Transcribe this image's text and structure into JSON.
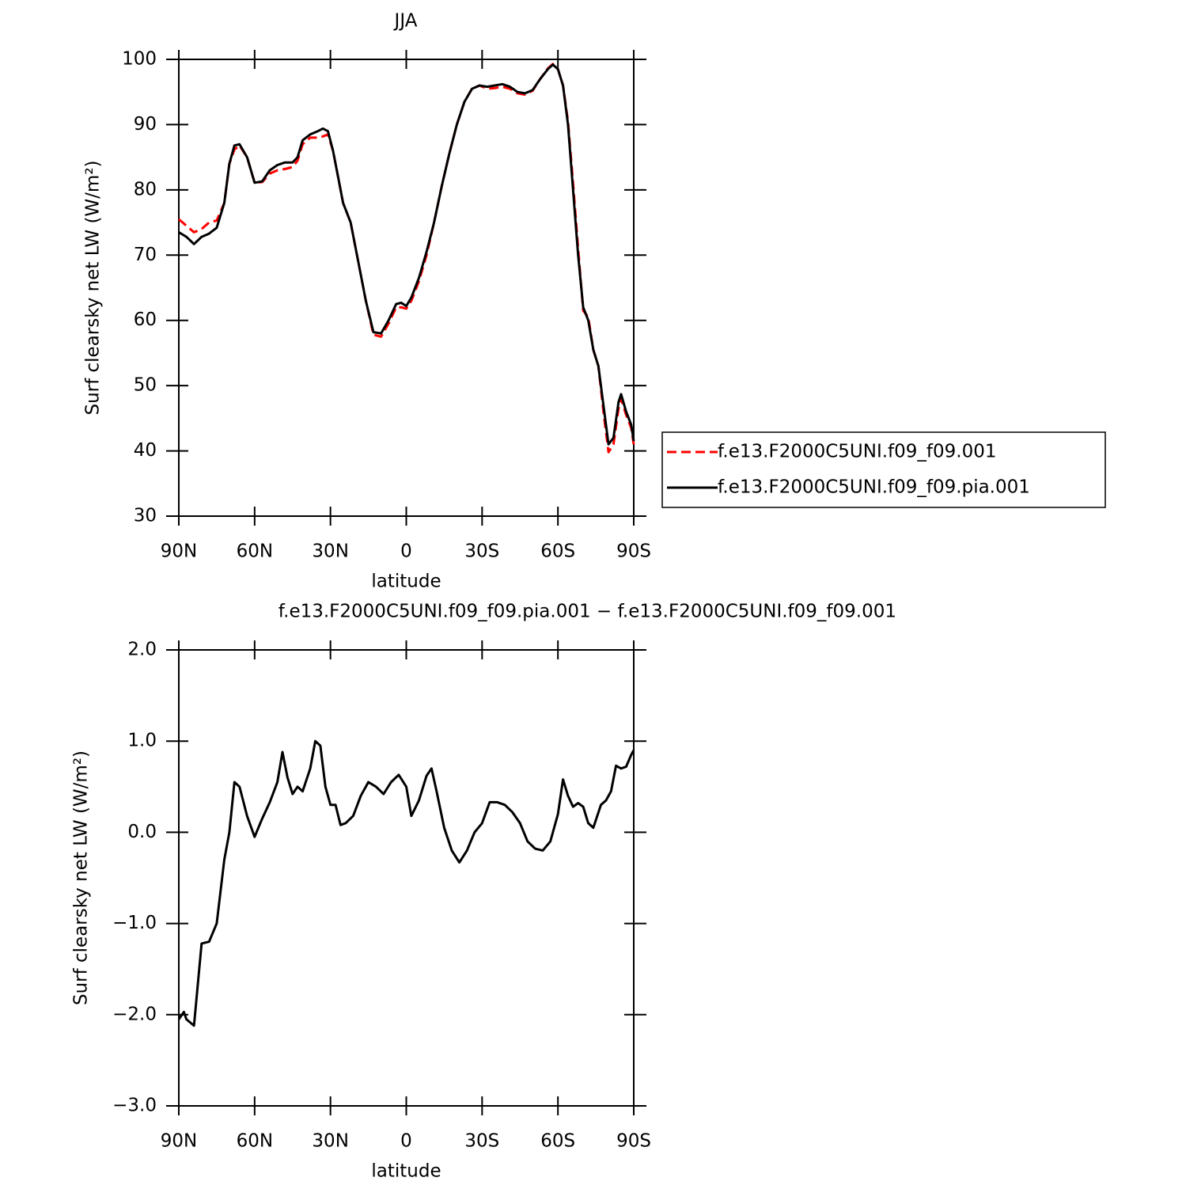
{
  "chart_data": [
    {
      "type": "line",
      "title": "JJA",
      "xlabel": "latitude",
      "ylabel": "Surf clearsky net LW (W/m²)",
      "x": [
        90,
        87,
        84,
        81,
        78,
        75,
        72,
        70,
        68,
        66,
        63,
        60,
        57,
        54,
        51,
        48,
        45,
        43,
        41,
        38,
        35,
        33,
        31,
        29,
        27,
        25,
        22,
        19,
        16,
        13,
        10,
        7,
        4,
        2,
        0,
        -2,
        -5,
        -8,
        -11,
        -14,
        -17,
        -20,
        -23,
        -26,
        -29,
        -32,
        -35,
        -38,
        -41,
        -44,
        -47,
        -50,
        -53,
        -56,
        -58,
        -60,
        -62,
        -64,
        -66,
        -68,
        -70,
        -72,
        -74,
        -76,
        -78,
        -80,
        -82,
        -84,
        -85,
        -87,
        -89,
        -90
      ],
      "series": [
        {
          "name": "f.e13.F2000C5UNI.f09_f09.001",
          "color": "#ff0000",
          "dashed": true,
          "values": [
            75.5,
            74.5,
            73.5,
            74,
            75,
            75.3,
            78,
            84,
            86.2,
            86.8,
            85,
            81.1,
            81.2,
            82.5,
            83,
            83.2,
            83.5,
            84.5,
            87,
            88,
            88,
            88.2,
            88.5,
            86,
            82,
            78,
            75,
            69,
            63,
            57.8,
            57.5,
            59.5,
            62,
            62,
            61.8,
            63,
            66,
            70,
            75,
            80.5,
            85.5,
            90,
            93.5,
            95.5,
            96,
            95.5,
            95.6,
            95.8,
            95.5,
            94.8,
            94.6,
            95.2,
            97,
            98.6,
            99.3,
            98.5,
            96,
            90.5,
            81,
            71,
            61.5,
            60.5,
            55.5,
            53,
            46,
            39.8,
            41,
            46.5,
            48,
            45.5,
            43.5,
            41
          ]
        },
        {
          "name": "f.e13.F2000C5UNI.f09_f09.pia.001",
          "color": "#000000",
          "dashed": false,
          "values": [
            73.5,
            72.8,
            71.7,
            72.8,
            73.3,
            74.2,
            78,
            84,
            86.8,
            87,
            85,
            81.1,
            81.3,
            83,
            83.8,
            84.2,
            84.2,
            85,
            87.6,
            88.5,
            89,
            89.4,
            89,
            86,
            82,
            78,
            75,
            69,
            63,
            58.2,
            58,
            60,
            62.5,
            62.7,
            62.2,
            63.5,
            66.5,
            70.5,
            75,
            80.5,
            85.5,
            90,
            93.5,
            95.5,
            96,
            95.8,
            96,
            96.2,
            95.8,
            95,
            94.8,
            95.3,
            97,
            98.5,
            99.2,
            98.5,
            96,
            90,
            80,
            70,
            62,
            60,
            55.5,
            53,
            47,
            41,
            42,
            47.5,
            48.7,
            46,
            44,
            41.5
          ]
        }
      ],
      "xlim": [
        90,
        -90
      ],
      "xticks": [
        {
          "value": 90,
          "label": "90N"
        },
        {
          "value": 60,
          "label": "60N"
        },
        {
          "value": 30,
          "label": "30N"
        },
        0,
        {
          "value": -30,
          "label": "30S"
        },
        {
          "value": -60,
          "label": "60S"
        },
        {
          "value": -90,
          "label": "90S"
        }
      ],
      "ylim": [
        30,
        100
      ],
      "yticks": [
        30,
        40,
        50,
        60,
        70,
        80,
        90,
        100
      ],
      "legend": "outside-right"
    },
    {
      "type": "line",
      "title": "f.e13.F2000C5UNI.f09_f09.pia.001 − f.e13.F2000C5UNI.f09_f09.001",
      "xlabel": "latitude",
      "ylabel": "Surf clearsky net LW (W/m²)",
      "x": [
        90,
        88,
        87,
        84,
        81,
        78,
        75,
        72,
        70,
        68,
        66,
        63,
        60,
        57,
        54,
        51,
        49,
        47,
        45,
        43,
        41,
        38,
        36,
        34,
        32,
        30,
        28,
        26,
        24,
        21,
        18,
        15,
        12,
        9,
        6,
        3,
        0,
        -2,
        -5,
        -8,
        -10,
        -12,
        -15,
        -18,
        -21,
        -24,
        -27,
        -30,
        -33,
        -36,
        -39,
        -42,
        -45,
        -48,
        -51,
        -54,
        -57,
        -60,
        -62,
        -64,
        -66,
        -68,
        -70,
        -72,
        -74,
        -77,
        -79,
        -81,
        -83,
        -85,
        -87,
        -89,
        -90
      ],
      "values": [
        -2.05,
        -1.97,
        -2.05,
        -2.12,
        -1.22,
        -1.2,
        -1.0,
        -0.3,
        0.0,
        0.55,
        0.5,
        0.18,
        -0.05,
        0.15,
        0.33,
        0.55,
        0.88,
        0.6,
        0.42,
        0.5,
        0.45,
        0.7,
        1.0,
        0.95,
        0.5,
        0.3,
        0.3,
        0.08,
        0.1,
        0.18,
        0.4,
        0.55,
        0.5,
        0.42,
        0.55,
        0.63,
        0.5,
        0.18,
        0.35,
        0.62,
        0.7,
        0.45,
        0.05,
        -0.2,
        -0.33,
        -0.2,
        0.0,
        0.1,
        0.33,
        0.33,
        0.3,
        0.22,
        0.1,
        -0.1,
        -0.18,
        -0.2,
        -0.1,
        0.2,
        0.58,
        0.4,
        0.28,
        0.32,
        0.28,
        0.1,
        0.05,
        0.3,
        0.35,
        0.45,
        0.73,
        0.7,
        0.72,
        0.85,
        0.9
      ],
      "color": "#000000",
      "xlim": [
        90,
        -90
      ],
      "xticks": [
        {
          "value": 90,
          "label": "90N"
        },
        {
          "value": 60,
          "label": "60N"
        },
        {
          "value": 30,
          "label": "30N"
        },
        0,
        {
          "value": -30,
          "label": "30S"
        },
        {
          "value": -60,
          "label": "60S"
        },
        {
          "value": -90,
          "label": "90S"
        }
      ],
      "ylim": [
        -3,
        2
      ],
      "yticks": [
        {
          "value": -3,
          "label": "−3.0"
        },
        {
          "value": -2,
          "label": "−2.0"
        },
        {
          "value": -1,
          "label": "−1.0"
        },
        {
          "value": 0,
          "label": "0.0"
        },
        {
          "value": 1,
          "label": "1.0"
        },
        {
          "value": 2,
          "label": "2.0"
        }
      ]
    }
  ]
}
